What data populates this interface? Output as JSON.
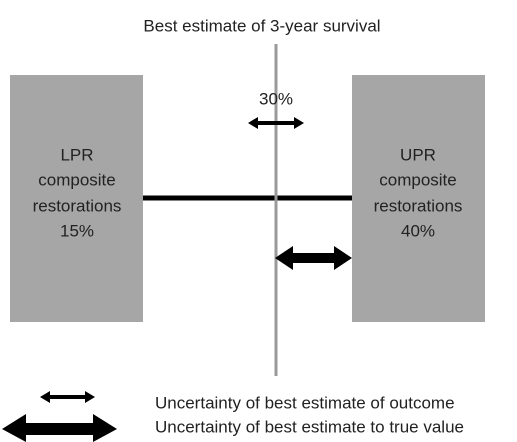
{
  "title": "Best estimate of 3-year survival",
  "left_box": {
    "lines": [
      "LPR",
      "composite",
      "restorations",
      "15%"
    ]
  },
  "right_box": {
    "lines": [
      "UPR",
      "composite",
      "restorations",
      "40%"
    ]
  },
  "estimate_label": "30%",
  "legend": [
    {
      "label": "Uncertainty of best estimate of outcome"
    },
    {
      "label": "Uncertainty of best estimate to true value"
    }
  ]
}
